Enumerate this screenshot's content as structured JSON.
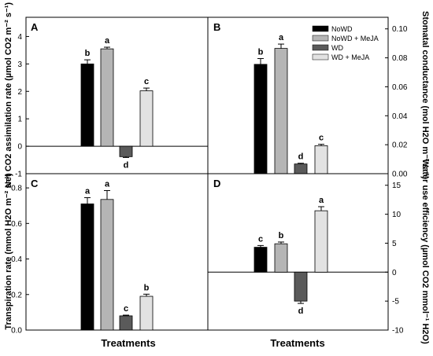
{
  "colors": {
    "NoWD": "#000000",
    "NoWD + MeJA": "#b5b5b5",
    "WD": "#5a5a5a",
    "WD + MeJA": "#e2e2e2"
  },
  "legend": {
    "position": "top-right of panel B",
    "entries": [
      "NoWD",
      "NoWD + MeJA",
      "WD",
      "WD + MeJA"
    ]
  },
  "chart_data": [
    {
      "panel": "A",
      "type": "bar",
      "categories": [
        "NoWD",
        "NoWD + MeJA",
        "WD",
        "WD + MeJA"
      ],
      "values": [
        3.0,
        3.55,
        -0.38,
        2.02
      ],
      "errors": [
        0.15,
        0.06,
        0.03,
        0.1
      ],
      "letters": [
        "b",
        "a",
        "d",
        "c"
      ],
      "ylabel": "Net CO2 assimilation rate (µmol CO2 m⁻² s⁻¹)",
      "xlabel": "",
      "ylim": [
        -1,
        4.7
      ],
      "yticks": [
        -1,
        0,
        1,
        2,
        3,
        4
      ],
      "ytick_labels": [
        "-1",
        "0",
        "1",
        "2",
        "3",
        "4"
      ],
      "axis_side": "left",
      "zero_line": true
    },
    {
      "panel": "B",
      "type": "bar",
      "categories": [
        "NoWD",
        "NoWD + MeJA",
        "WD",
        "WD + MeJA"
      ],
      "values": [
        0.0755,
        0.0865,
        0.0067,
        0.0193
      ],
      "errors": [
        0.004,
        0.003,
        0.0005,
        0.001
      ],
      "letters": [
        "b",
        "a",
        "d",
        "c"
      ],
      "ylabel": "Stomatal conductance (mol H2O m⁻² s⁻¹)",
      "xlabel": "",
      "ylim": [
        0,
        0.108
      ],
      "yticks": [
        0,
        0.02,
        0.04,
        0.06,
        0.08,
        0.1
      ],
      "ytick_labels": [
        "0.00",
        "0.02",
        "0.04",
        "0.06",
        "0.08",
        "0.10"
      ],
      "axis_side": "right",
      "zero_line": false
    },
    {
      "panel": "C",
      "type": "bar",
      "categories": [
        "NoWD",
        "NoWD + MeJA",
        "WD",
        "WD + MeJA"
      ],
      "values": [
        0.71,
        0.735,
        0.08,
        0.19
      ],
      "errors": [
        0.035,
        0.05,
        0.004,
        0.012
      ],
      "letters": [
        "a",
        "a",
        "c",
        "b"
      ],
      "ylabel": "Transpiration rate (mmol H2O m⁻² s⁻¹)",
      "xlabel": "Treatments",
      "ylim": [
        0,
        0.88
      ],
      "yticks": [
        0,
        0.2,
        0.4,
        0.6,
        0.8
      ],
      "ytick_labels": [
        "0.0",
        "0.2",
        "0.4",
        "0.6",
        "0.8"
      ],
      "axis_side": "left",
      "zero_line": false
    },
    {
      "panel": "D",
      "type": "bar",
      "categories": [
        "NoWD",
        "NoWD + MeJA",
        "WD",
        "WD + MeJA"
      ],
      "values": [
        4.3,
        4.9,
        -5.0,
        10.6
      ],
      "errors": [
        0.3,
        0.3,
        0.4,
        0.7
      ],
      "letters": [
        "c",
        "b",
        "d",
        "a"
      ],
      "ylabel": "Water use efficiency (µmol CO2 mmol⁻¹ H2O)",
      "xlabel": "Treatments",
      "ylim": [
        -10,
        17
      ],
      "yticks": [
        -10,
        -5,
        0,
        5,
        10,
        15
      ],
      "ytick_labels": [
        "-10",
        "-5",
        "0",
        "5",
        "10",
        "15"
      ],
      "axis_side": "right",
      "zero_line": true
    }
  ]
}
